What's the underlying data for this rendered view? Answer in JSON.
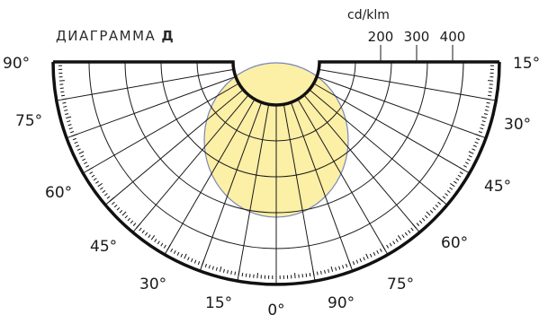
{
  "chart_title": {
    "text": "ДИАГРАММА",
    "suffix": "Д"
  },
  "chart_data": {
    "type": "polar",
    "unit": "cd/klm",
    "radial_ticks": [
      "200",
      "300",
      "400"
    ],
    "radial_max": 500,
    "ring_step": 100,
    "angle_ticks": {
      "left": [
        "90°",
        "75°",
        "60°",
        "45°",
        "30°",
        "15°"
      ],
      "center": "0°",
      "right": [
        "15°",
        "30°",
        "45°",
        "60°",
        "75°",
        "90°"
      ]
    },
    "angle_values": [
      90,
      75,
      60,
      45,
      30,
      15,
      0,
      15,
      30,
      45,
      60,
      75,
      90
    ],
    "series": [
      {
        "points": [
          {
            "angle": 0,
            "intensity": 250
          },
          {
            "angle": 15,
            "intensity": 245
          },
          {
            "angle": 30,
            "intensity": 215
          },
          {
            "angle": 45,
            "intensity": 170
          },
          {
            "angle": 60,
            "intensity": 120
          },
          {
            "angle": 75,
            "intensity": 55
          },
          {
            "angle": 90,
            "intensity": 0
          }
        ],
        "fill": "#fcefa6",
        "stroke": "#7a86b8"
      }
    ],
    "colors": {
      "grid": "#1a1a1a",
      "frame": "#111111",
      "fill": "#fcefa6",
      "outline": "#7a86b8"
    }
  }
}
